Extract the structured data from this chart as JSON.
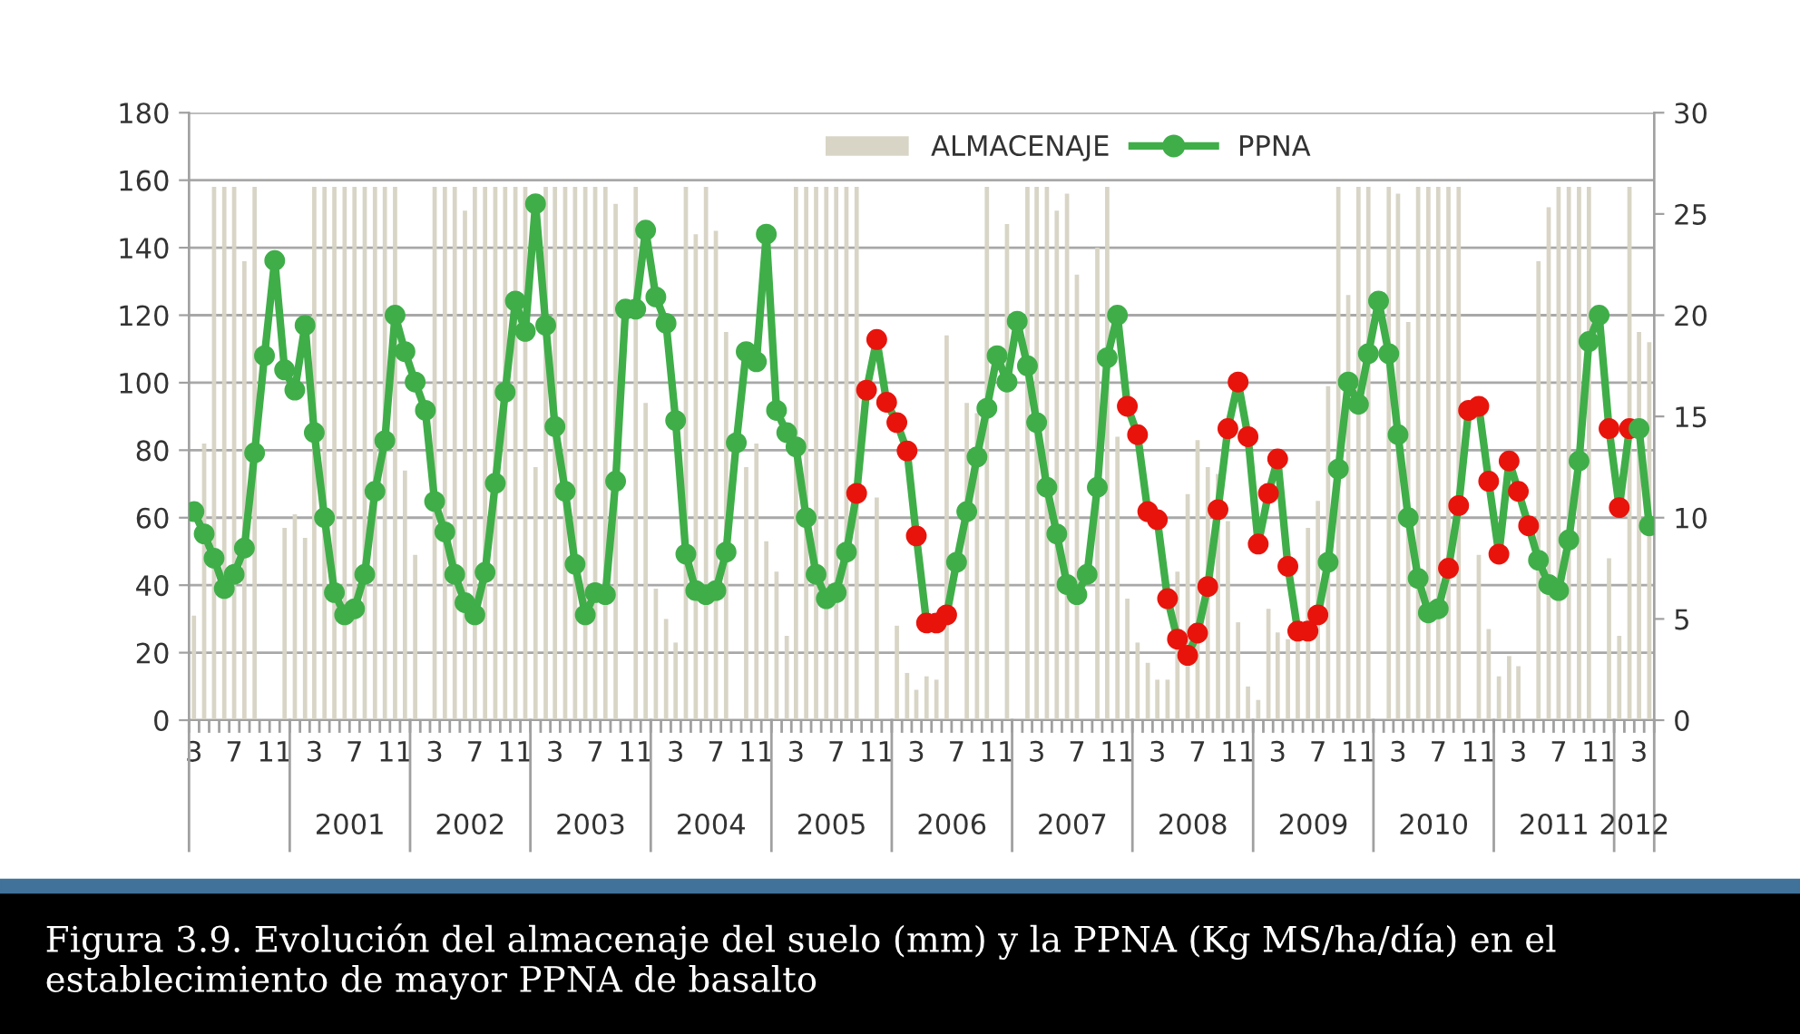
{
  "chart_data": {
    "type": "bar",
    "x": [
      "2000-03",
      "2000-04",
      "2000-05",
      "2000-06",
      "2000-07",
      "2000-08",
      "2000-09",
      "2000-10",
      "2000-11",
      "2000-12",
      "2001-01",
      "2001-02",
      "2001-03",
      "2001-04",
      "2001-05",
      "2001-06",
      "2001-07",
      "2001-08",
      "2001-09",
      "2001-10",
      "2001-11",
      "2001-12",
      "2002-01",
      "2002-02",
      "2002-03",
      "2002-04",
      "2002-05",
      "2002-06",
      "2002-07",
      "2002-08",
      "2002-09",
      "2002-10",
      "2002-11",
      "2002-12",
      "2003-01",
      "2003-02",
      "2003-03",
      "2003-04",
      "2003-05",
      "2003-06",
      "2003-07",
      "2003-08",
      "2003-09",
      "2003-10",
      "2003-11",
      "2003-12",
      "2004-01",
      "2004-02",
      "2004-03",
      "2004-04",
      "2004-05",
      "2004-06",
      "2004-07",
      "2004-08",
      "2004-09",
      "2004-10",
      "2004-11",
      "2004-12",
      "2005-01",
      "2005-02",
      "2005-03",
      "2005-04",
      "2005-05",
      "2005-06",
      "2005-07",
      "2005-08",
      "2005-09",
      "2005-10",
      "2005-11",
      "2005-12",
      "2006-01",
      "2006-02",
      "2006-03",
      "2006-04",
      "2006-05",
      "2006-06",
      "2006-07",
      "2006-08",
      "2006-09",
      "2006-10",
      "2006-11",
      "2006-12",
      "2007-01",
      "2007-02",
      "2007-03",
      "2007-04",
      "2007-05",
      "2007-06",
      "2007-07",
      "2007-08",
      "2007-09",
      "2007-10",
      "2007-11",
      "2007-12",
      "2008-01",
      "2008-02",
      "2008-03",
      "2008-04",
      "2008-05",
      "2008-06",
      "2008-07",
      "2008-08",
      "2008-09",
      "2008-10",
      "2008-11",
      "2008-12",
      "2009-01",
      "2009-02",
      "2009-03",
      "2009-04",
      "2009-05",
      "2009-06",
      "2009-07",
      "2009-08",
      "2009-09",
      "2009-10",
      "2009-11",
      "2009-12",
      "2010-01",
      "2010-02",
      "2010-03",
      "2010-04",
      "2010-05",
      "2010-06",
      "2010-07",
      "2010-08",
      "2010-09",
      "2010-10",
      "2010-11",
      "2010-12",
      "2011-01",
      "2011-02",
      "2011-03",
      "2011-04",
      "2011-05",
      "2011-06",
      "2011-07",
      "2011-08",
      "2011-09",
      "2011-10",
      "2011-11",
      "2011-12",
      "2012-01",
      "2012-02",
      "2012-03",
      "2012-04"
    ],
    "xlim": [
      "2000-02-16",
      "2012-04-16"
    ],
    "xticks": [
      {
        "value": "2000-03",
        "label": "3"
      },
      {
        "value": "2000-07",
        "label": "7"
      },
      {
        "value": "2000-11",
        "label": "11"
      },
      {
        "value": "2001-03",
        "label": "3"
      },
      {
        "value": "2001-07",
        "label": "7"
      },
      {
        "value": "2001-11",
        "label": "11"
      },
      {
        "value": "2002-03",
        "label": "3"
      },
      {
        "value": "2002-07",
        "label": "7"
      },
      {
        "value": "2002-11",
        "label": "11"
      },
      {
        "value": "2003-03",
        "label": "3"
      },
      {
        "value": "2003-07",
        "label": "7"
      },
      {
        "value": "2003-11",
        "label": "11"
      },
      {
        "value": "2004-03",
        "label": "3"
      },
      {
        "value": "2004-07",
        "label": "7"
      },
      {
        "value": "2004-11",
        "label": "11"
      },
      {
        "value": "2005-03",
        "label": "3"
      },
      {
        "value": "2005-07",
        "label": "7"
      },
      {
        "value": "2005-11",
        "label": "11"
      },
      {
        "value": "2006-03",
        "label": "3"
      },
      {
        "value": "2006-07",
        "label": "7"
      },
      {
        "value": "2006-11",
        "label": "11"
      },
      {
        "value": "2007-03",
        "label": "3"
      },
      {
        "value": "2007-07",
        "label": "7"
      },
      {
        "value": "2007-11",
        "label": "11"
      },
      {
        "value": "2008-03",
        "label": "3"
      },
      {
        "value": "2008-07",
        "label": "7"
      },
      {
        "value": "2008-11",
        "label": "11"
      },
      {
        "value": "2009-03",
        "label": "3"
      },
      {
        "value": "2009-07",
        "label": "7"
      },
      {
        "value": "2009-11",
        "label": "11"
      },
      {
        "value": "2010-03",
        "label": "3"
      },
      {
        "value": "2010-07",
        "label": "7"
      },
      {
        "value": "2010-11",
        "label": "11"
      },
      {
        "value": "2011-03",
        "label": "3"
      },
      {
        "value": "2011-07",
        "label": "7"
      },
      {
        "value": "2011-11",
        "label": "11"
      },
      {
        "value": "2012-03",
        "label": "3"
      }
    ],
    "ylim": [
      0,
      180
    ],
    "yticks": [
      0,
      20,
      40,
      60,
      80,
      100,
      120,
      140,
      160,
      180
    ],
    "y2lim": [
      0,
      30
    ],
    "y2ticks": [
      0,
      5,
      10,
      15,
      20,
      25,
      30
    ],
    "grid": "y",
    "legend": "top",
    "series": [
      {
        "name": "ALMACENAJE",
        "color": "#d8d5c6",
        "values": [
          31,
          82,
          158,
          158,
          158,
          136,
          158,
          null,
          null,
          57,
          61,
          54,
          158,
          158,
          158,
          158,
          158,
          158,
          158,
          158,
          158,
          74,
          49,
          null,
          158,
          158,
          158,
          151,
          158,
          158,
          158,
          158,
          158,
          158,
          75,
          158,
          158,
          158,
          158,
          158,
          158,
          158,
          153,
          null,
          158,
          94,
          39,
          30,
          23,
          158,
          144,
          158,
          145,
          115,
          null,
          75,
          82,
          53,
          44,
          25,
          158,
          158,
          158,
          158,
          158,
          158,
          158,
          null,
          66,
          null,
          28,
          14,
          9,
          13,
          12,
          114,
          null,
          94,
          91,
          158,
          null,
          147,
          null,
          158,
          158,
          158,
          151,
          156,
          132,
          null,
          140,
          158,
          84,
          36,
          23,
          17,
          12,
          12,
          44,
          67,
          83,
          75,
          73,
          59,
          29,
          10,
          6,
          33,
          26,
          24,
          25,
          57,
          65,
          99,
          158,
          126,
          158,
          158,
          null,
          158,
          156,
          118,
          158,
          158,
          158,
          158,
          158,
          null,
          49,
          27,
          13,
          19,
          16,
          null,
          136,
          152,
          158,
          158,
          158,
          158,
          null,
          48,
          25,
          158,
          115,
          112
        ]
      },
      {
        "name": "PPNA",
        "type": "line",
        "axis": "y2",
        "color": "#3fae49",
        "marker": "circle",
        "line_style": "solid",
        "values": [
          10.3,
          9.2,
          8.0,
          6.5,
          7.2,
          8.5,
          13.2,
          18.0,
          22.7,
          17.3,
          16.3,
          19.5,
          14.2,
          10.0,
          6.3,
          5.2,
          5.5,
          7.2,
          11.3,
          13.8,
          20.0,
          18.2,
          16.7,
          15.3,
          10.8,
          9.3,
          7.2,
          5.8,
          5.2,
          7.3,
          11.7,
          16.2,
          20.7,
          19.2,
          25.5,
          19.5,
          14.5,
          11.3,
          7.7,
          5.2,
          6.3,
          6.2,
          11.8,
          20.3,
          20.3,
          24.2,
          20.9,
          19.6,
          14.8,
          8.2,
          6.4,
          6.2,
          6.4,
          8.3,
          13.7,
          18.2,
          17.7,
          24.0,
          15.3,
          14.2,
          13.5,
          10.0,
          7.2,
          6.0,
          6.3,
          8.3,
          11.2,
          16.3,
          18.8,
          15.7,
          14.7,
          13.3,
          9.1,
          4.8,
          4.8,
          5.2,
          7.8,
          10.3,
          13.0,
          15.4,
          18.0,
          16.7,
          19.7,
          17.5,
          14.7,
          11.5,
          9.2,
          6.7,
          6.2,
          7.2,
          11.5,
          17.9,
          20.0,
          15.5,
          14.1,
          10.3,
          9.9,
          6.0,
          4.0,
          3.2,
          4.3,
          6.6,
          10.4,
          14.4,
          16.7,
          14.0,
          8.7,
          11.2,
          12.9,
          7.6,
          4.4,
          4.4,
          5.2,
          7.8,
          12.4,
          16.7,
          15.6,
          18.1,
          20.7,
          18.1,
          14.1,
          10.0,
          7.0,
          5.3,
          5.5,
          7.5,
          10.6,
          15.3,
          15.5,
          11.8,
          8.2,
          12.8,
          11.3,
          9.6,
          7.9,
          6.7,
          6.4,
          8.9,
          12.8,
          18.7,
          20.0,
          14.4,
          10.5,
          14.4,
          14.4,
          9.6
        ],
        "colors": [
          "#3fae49",
          "#3fae49",
          "#3fae49",
          "#3fae49",
          "#3fae49",
          "#3fae49",
          "#3fae49",
          "#3fae49",
          "#3fae49",
          "#3fae49",
          "#3fae49",
          "#3fae49",
          "#3fae49",
          "#3fae49",
          "#3fae49",
          "#3fae49",
          "#3fae49",
          "#3fae49",
          "#3fae49",
          "#3fae49",
          "#3fae49",
          "#3fae49",
          "#3fae49",
          "#3fae49",
          "#3fae49",
          "#3fae49",
          "#3fae49",
          "#3fae49",
          "#3fae49",
          "#3fae49",
          "#3fae49",
          "#3fae49",
          "#3fae49",
          "#3fae49",
          "#3fae49",
          "#3fae49",
          "#3fae49",
          "#3fae49",
          "#3fae49",
          "#3fae49",
          "#3fae49",
          "#3fae49",
          "#3fae49",
          "#3fae49",
          "#3fae49",
          "#3fae49",
          "#3fae49",
          "#3fae49",
          "#3fae49",
          "#3fae49",
          "#3fae49",
          "#3fae49",
          "#3fae49",
          "#3fae49",
          "#3fae49",
          "#3fae49",
          "#3fae49",
          "#3fae49",
          "#3fae49",
          "#3fae49",
          "#3fae49",
          "#3fae49",
          "#3fae49",
          "#3fae49",
          "#3fae49",
          "#3fae49",
          "#e8140c",
          "#e8140c",
          "#e8140c",
          "#e8140c",
          "#e8140c",
          "#e8140c",
          "#e8140c",
          "#e8140c",
          "#e8140c",
          "#e8140c",
          "#3fae49",
          "#3fae49",
          "#3fae49",
          "#3fae49",
          "#3fae49",
          "#3fae49",
          "#3fae49",
          "#3fae49",
          "#3fae49",
          "#3fae49",
          "#3fae49",
          "#3fae49",
          "#3fae49",
          "#3fae49",
          "#3fae49",
          "#3fae49",
          "#3fae49",
          "#e8140c",
          "#e8140c",
          "#e8140c",
          "#e8140c",
          "#e8140c",
          "#e8140c",
          "#e8140c",
          "#e8140c",
          "#e8140c",
          "#e8140c",
          "#e8140c",
          "#e8140c",
          "#e8140c",
          "#e8140c",
          "#e8140c",
          "#e8140c",
          "#e8140c",
          "#e8140c",
          "#e8140c",
          "#e8140c",
          "#3fae49",
          "#3fae49",
          "#3fae49",
          "#3fae49",
          "#3fae49",
          "#3fae49",
          "#3fae49",
          "#3fae49",
          "#3fae49",
          "#3fae49",
          "#3fae49",
          "#3fae49",
          "#e8140c",
          "#e8140c",
          "#e8140c",
          "#e8140c",
          "#e8140c",
          "#e8140c",
          "#e8140c",
          "#e8140c",
          "#e8140c",
          "#3fae49",
          "#3fae49",
          "#3fae49",
          "#3fae49",
          "#3fae49",
          "#3fae49",
          "#3fae49",
          "#e8140c",
          "#e8140c",
          "#e8140c",
          "#3fae49",
          "#3fae49"
        ]
      }
    ],
    "annotations": [
      "2001",
      "2002",
      "2003",
      "2004",
      "2005",
      "2006",
      "2007",
      "2008",
      "2009",
      "2010",
      "2011",
      "2012",
      "Figura 3.9. Evolución del almacenaje del suelo (mm) y la PPNA (Kg MS/ha/día) en el establecimiento de mayor PPNA de basalto"
    ]
  }
}
